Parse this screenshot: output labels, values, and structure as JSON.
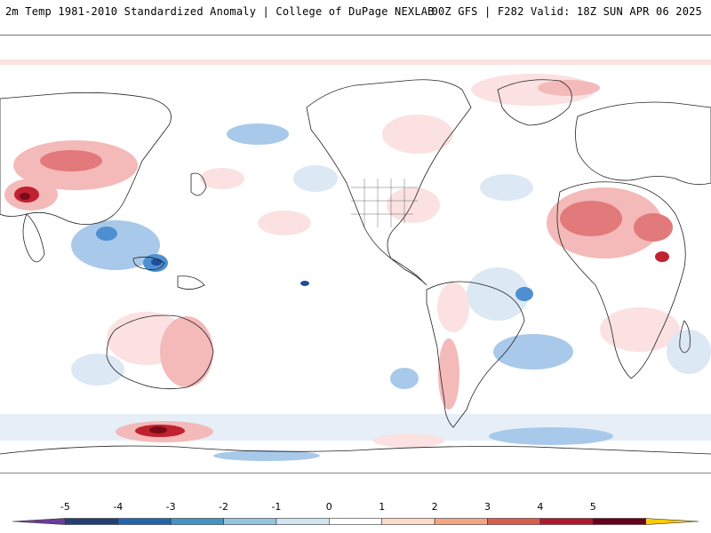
{
  "header": {
    "left_title": "2m Temp 1981-2010 Standardized Anomaly | College of DuPage NEXLAB",
    "right_title": "00Z GFS | F282 Valid: 18Z SUN APR 06 2025"
  },
  "colorbar": {
    "tick_labels": [
      "-5",
      "-4",
      "-3",
      "-2",
      "-1",
      "0",
      "1",
      "2",
      "3",
      "4",
      "5"
    ],
    "colors": [
      "#6a3d9a",
      "#23416f",
      "#2166ac",
      "#4393c3",
      "#92c5de",
      "#d1e5f0",
      "#ffffff",
      "#fddbc7",
      "#f4a582",
      "#d6604d",
      "#b2182b",
      "#67001f",
      "#ffcc00"
    ]
  },
  "map": {
    "anomaly_colors": {
      "cold_strong": "#1f4e99",
      "cold_mid": "#4e8fd1",
      "cold_light": "#a9c9ea",
      "cold_faint": "#dce8f4",
      "warm_faint": "#fbe1e1",
      "warm_light": "#f4b9b9",
      "warm_mid": "#e2797a",
      "warm_strong": "#c0222f",
      "warm_deep": "#7a0a1a"
    }
  }
}
